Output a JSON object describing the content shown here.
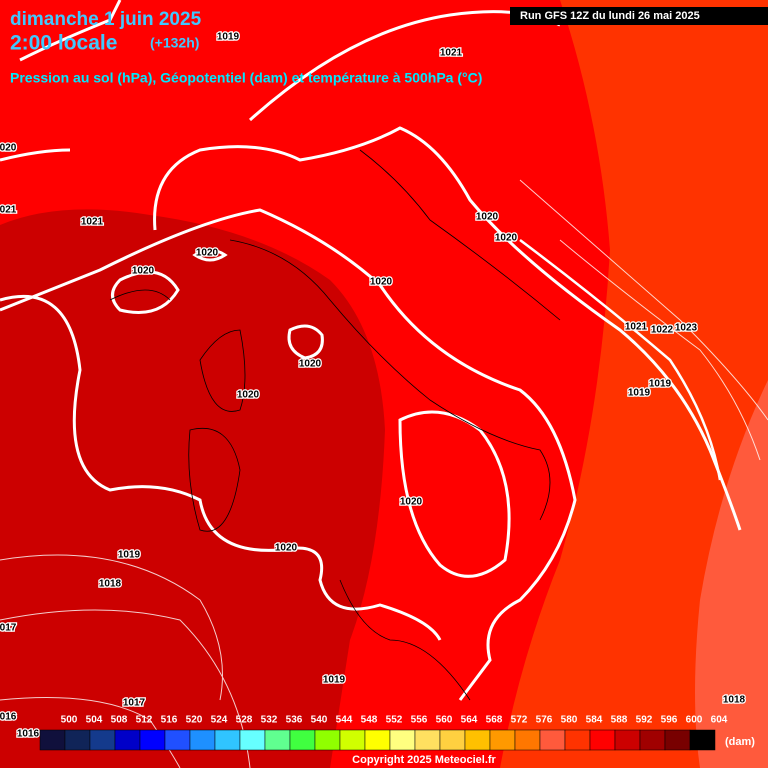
{
  "header": {
    "date": "dimanche 1 juin 2025",
    "time": "2:00 locale",
    "lead": "(+132h)",
    "subtitle": "Pression au sol (hPa), Géopotentiel (dam) et température à 500hPa (°C)",
    "run": "Run GFS 12Z du lundi 26 mai 2025"
  },
  "isobar_labels": [
    "1019",
    "1021",
    "020",
    "021",
    "1021",
    "1020",
    "1020",
    "1020",
    "1020",
    "1020",
    "1020",
    "1020",
    "1020",
    "1020",
    "1019",
    "1018",
    "017",
    "1017",
    "016",
    "1016",
    "1019",
    "1021",
    "1022",
    "1023",
    "1019",
    "1019",
    "1018"
  ],
  "legend": {
    "items": [
      {
        "label": "500",
        "color": "#10103c"
      },
      {
        "label": "504",
        "color": "#102458"
      },
      {
        "label": "508",
        "color": "#143a8c"
      },
      {
        "label": "512",
        "color": "#0000c8"
      },
      {
        "label": "516",
        "color": "#0000ff"
      },
      {
        "label": "520",
        "color": "#2050ff"
      },
      {
        "label": "524",
        "color": "#1e90ff"
      },
      {
        "label": "528",
        "color": "#30c4ff"
      },
      {
        "label": "532",
        "color": "#66ffff"
      },
      {
        "label": "536",
        "color": "#60ff90"
      },
      {
        "label": "540",
        "color": "#40ff40"
      },
      {
        "label": "544",
        "color": "#90ff00"
      },
      {
        "label": "548",
        "color": "#d0ff00"
      },
      {
        "label": "552",
        "color": "#ffff00"
      },
      {
        "label": "556",
        "color": "#ffff80"
      },
      {
        "label": "560",
        "color": "#ffe060"
      },
      {
        "label": "564",
        "color": "#ffd040"
      },
      {
        "label": "568",
        "color": "#ffc000"
      },
      {
        "label": "572",
        "color": "#ff9900"
      },
      {
        "label": "576",
        "color": "#ff7700"
      },
      {
        "label": "580",
        "color": "#ff5a3c"
      },
      {
        "label": "584",
        "color": "#ff3300"
      },
      {
        "label": "588",
        "color": "#ff0000"
      },
      {
        "label": "592",
        "color": "#cc0000"
      },
      {
        "label": "596",
        "color": "#a00000"
      },
      {
        "label": "600",
        "color": "#780000"
      },
      {
        "label": "604",
        "color": "#000000"
      }
    ],
    "unit": "(dam)"
  },
  "footer": {
    "copyright": "Copyright 2025 Meteociel.fr"
  }
}
